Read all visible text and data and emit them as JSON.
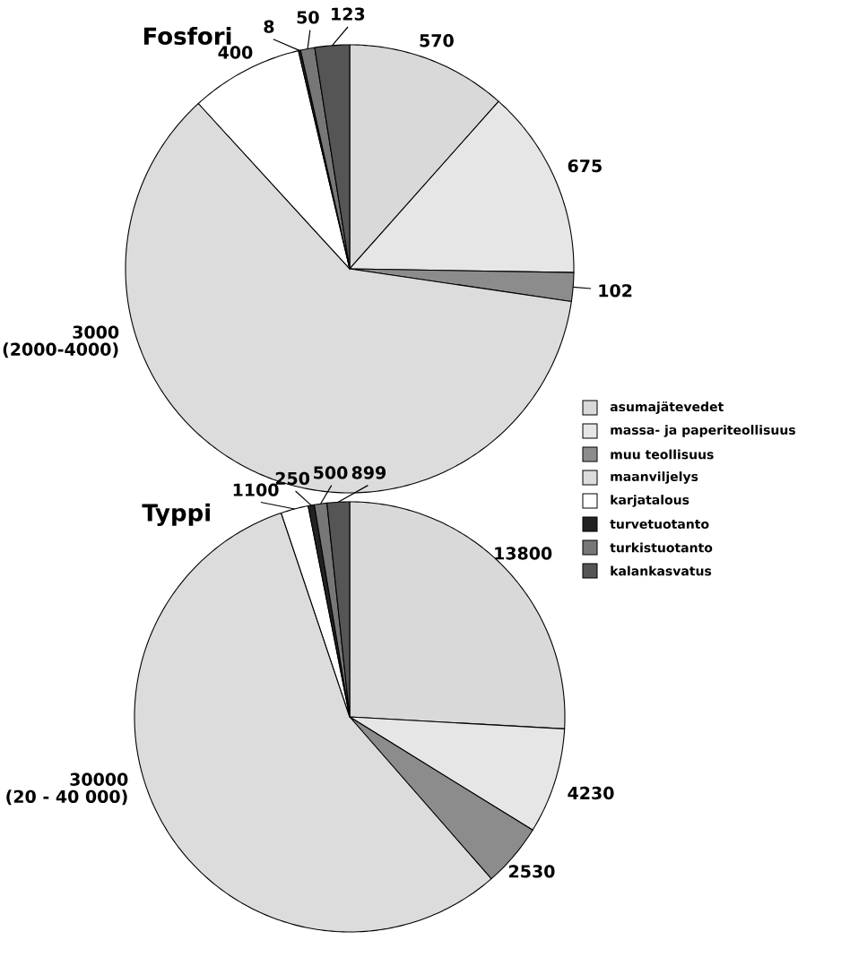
{
  "chart_data": [
    {
      "type": "pie",
      "title": "Fosfori",
      "legend": "right",
      "data_labels": true,
      "categories": [
        "asumajätevedet",
        "massa- ja paperiteollisuus",
        "muu teollisuus",
        "maanviljelys",
        "karjatalous",
        "turvetuotanto",
        "turkistuotanto",
        "kalankasvatus"
      ],
      "values": [
        570,
        675,
        102,
        3000,
        400,
        8,
        50,
        123
      ],
      "colors": [
        "#d9d9d9",
        "#e6e6e6",
        "#8c8c8c",
        "#dcdcdc",
        "#ffffff",
        "#222222",
        "#777777",
        "#555555"
      ],
      "annotations": [
        "(2000-4000)"
      ]
    },
    {
      "type": "pie",
      "title": "Typpi",
      "data_labels": true,
      "categories": [
        null,
        null,
        null,
        null,
        null,
        null,
        null,
        null
      ],
      "values": [
        13800,
        4230,
        2530,
        30000,
        1100,
        250,
        500,
        899
      ],
      "colors": [
        "#d9d9d9",
        "#e6e6e6",
        "#8c8c8c",
        "#dcdcdc",
        "#ffffff",
        "#222222",
        "#777777",
        "#555555"
      ],
      "annotations": [
        "(20 - 40 000)"
      ]
    }
  ]
}
